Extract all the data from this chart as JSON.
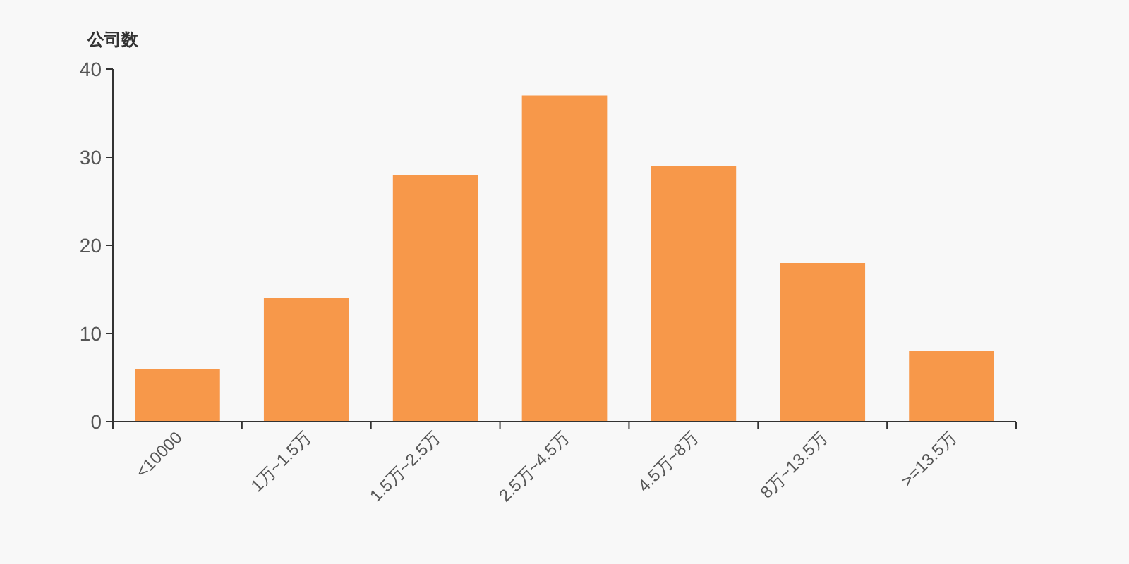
{
  "chart_data": {
    "type": "bar",
    "ylabel": "公司数",
    "categories": [
      "<10000",
      "1万~1.5万",
      "1.5万~2.5万",
      "2.5万~4.5万",
      "4.5万~8万",
      "8万~13.5万",
      ">=13.5万"
    ],
    "values": [
      6,
      14,
      28,
      37,
      29,
      18,
      8
    ],
    "color": "#f7984a",
    "ylim": [
      0,
      40
    ],
    "yticks": [
      0,
      10,
      20,
      30,
      40
    ],
    "grid": false
  }
}
